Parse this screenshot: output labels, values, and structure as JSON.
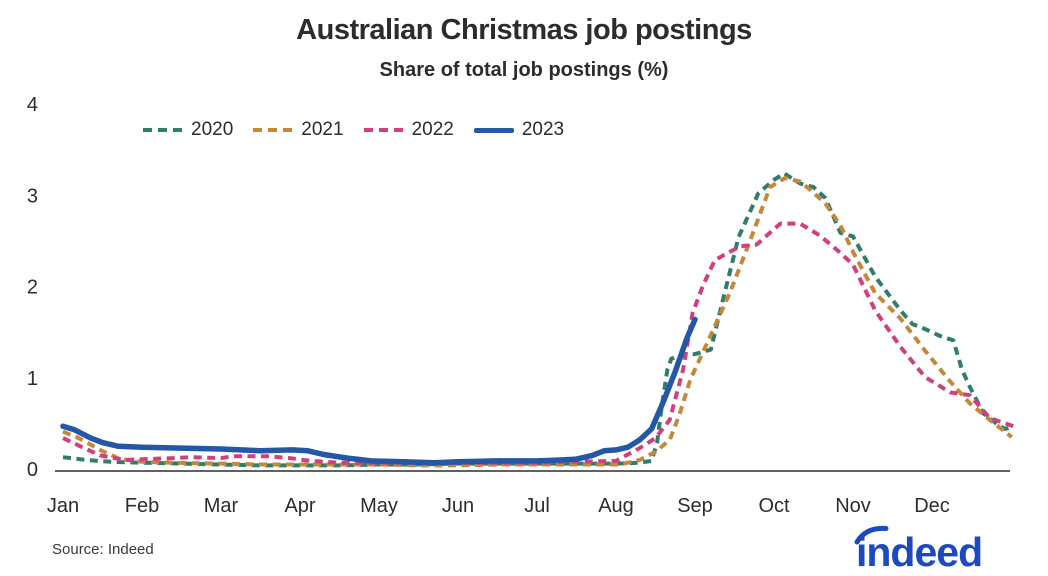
{
  "page": {
    "background": "#FFFFFF",
    "text_color": "#2D2D2D"
  },
  "header": {
    "title": "Australian Christmas job postings",
    "subtitle": "Share of total job postings (%)"
  },
  "footer": {
    "source": "Source: Indeed",
    "logo_text": "indeed",
    "logo_color": "#1B49C0"
  },
  "chart_data": {
    "type": "line",
    "title": "Australian Christmas job postings",
    "subtitle": "Share of total job postings (%)",
    "xlabel": "",
    "ylabel": "Share of total job postings (%)",
    "ylim": [
      0,
      4
    ],
    "yticks": [
      0,
      1,
      2,
      3,
      4
    ],
    "grid": false,
    "legend_position": "top-left",
    "x_unit": "months since Jan 1 (fractional = position within month)",
    "categories": [
      "Jan",
      "Feb",
      "Mar",
      "Apr",
      "May",
      "Jun",
      "Jul",
      "Aug",
      "Sep",
      "Oct",
      "Nov",
      "Dec"
    ],
    "axis_color": "#2D2D2D",
    "series": [
      {
        "name": "2020",
        "color": "#2F7D6D",
        "style": "dashed",
        "points": [
          [
            0,
            0.14
          ],
          [
            0.3,
            0.11
          ],
          [
            0.6,
            0.09
          ],
          [
            1,
            0.08
          ],
          [
            1.5,
            0.07
          ],
          [
            2,
            0.06
          ],
          [
            2.5,
            0.05
          ],
          [
            3,
            0.05
          ],
          [
            3.5,
            0.05
          ],
          [
            4,
            0.06
          ],
          [
            4.5,
            0.06
          ],
          [
            5,
            0.07
          ],
          [
            5.5,
            0.07
          ],
          [
            6,
            0.07
          ],
          [
            6.5,
            0.07
          ],
          [
            7,
            0.07
          ],
          [
            7.3,
            0.08
          ],
          [
            7.45,
            0.1
          ],
          [
            7.52,
            0.3
          ],
          [
            7.58,
            0.7
          ],
          [
            7.65,
            1.1
          ],
          [
            7.7,
            1.22
          ],
          [
            7.85,
            1.26
          ],
          [
            8,
            1.27
          ],
          [
            8.2,
            1.32
          ],
          [
            8.35,
            1.85
          ],
          [
            8.55,
            2.55
          ],
          [
            8.8,
            3.03
          ],
          [
            9,
            3.18
          ],
          [
            9.13,
            3.25
          ],
          [
            9.33,
            3.14
          ],
          [
            9.5,
            3.1
          ],
          [
            9.65,
            2.98
          ],
          [
            9.84,
            2.6
          ],
          [
            10,
            2.56
          ],
          [
            10.28,
            2.12
          ],
          [
            10.6,
            1.75
          ],
          [
            10.75,
            1.6
          ],
          [
            10.9,
            1.55
          ],
          [
            11.1,
            1.47
          ],
          [
            11.27,
            1.42
          ],
          [
            11.38,
            1.1
          ],
          [
            11.48,
            0.91
          ],
          [
            11.65,
            0.62
          ],
          [
            11.8,
            0.52
          ],
          [
            11.92,
            0.45
          ],
          [
            12.02,
            0.47
          ]
        ]
      },
      {
        "name": "2021",
        "color": "#C4883B",
        "style": "dashed",
        "points": [
          [
            0,
            0.42
          ],
          [
            0.2,
            0.35
          ],
          [
            0.47,
            0.22
          ],
          [
            0.72,
            0.12
          ],
          [
            1,
            0.09
          ],
          [
            1.35,
            0.08
          ],
          [
            2,
            0.07
          ],
          [
            2.5,
            0.06
          ],
          [
            3,
            0.06
          ],
          [
            3.5,
            0.06
          ],
          [
            4,
            0.06
          ],
          [
            4.5,
            0.05
          ],
          [
            5,
            0.05
          ],
          [
            5.5,
            0.06
          ],
          [
            6,
            0.06
          ],
          [
            6.7,
            0.06
          ],
          [
            7.05,
            0.06
          ],
          [
            7.3,
            0.11
          ],
          [
            7.5,
            0.2
          ],
          [
            7.68,
            0.33
          ],
          [
            7.8,
            0.6
          ],
          [
            7.94,
            0.99
          ],
          [
            8.19,
            1.46
          ],
          [
            8.44,
            1.94
          ],
          [
            8.7,
            2.52
          ],
          [
            8.95,
            3.1
          ],
          [
            9.14,
            3.2
          ],
          [
            9.33,
            3.16
          ],
          [
            9.46,
            3.07
          ],
          [
            9.65,
            2.92
          ],
          [
            9.84,
            2.68
          ],
          [
            10,
            2.39
          ],
          [
            10.28,
            1.94
          ],
          [
            10.6,
            1.66
          ],
          [
            10.91,
            1.31
          ],
          [
            11.23,
            0.97
          ],
          [
            11.48,
            0.73
          ],
          [
            11.73,
            0.55
          ],
          [
            12.01,
            0.36
          ]
        ]
      },
      {
        "name": "2022",
        "color": "#D23F7F",
        "style": "dashed",
        "points": [
          [
            0,
            0.35
          ],
          [
            0.22,
            0.26
          ],
          [
            0.47,
            0.16
          ],
          [
            0.78,
            0.11
          ],
          [
            1.04,
            0.12
          ],
          [
            1.4,
            0.13
          ],
          [
            1.61,
            0.14
          ],
          [
            2,
            0.13
          ],
          [
            2.15,
            0.15
          ],
          [
            2.6,
            0.15
          ],
          [
            2.87,
            0.13
          ],
          [
            3.13,
            0.1
          ],
          [
            3.5,
            0.08
          ],
          [
            4,
            0.08
          ],
          [
            4.5,
            0.08
          ],
          [
            5,
            0.08
          ],
          [
            5.5,
            0.08
          ],
          [
            6,
            0.08
          ],
          [
            6.4,
            0.09
          ],
          [
            7,
            0.1
          ],
          [
            7.3,
            0.24
          ],
          [
            7.5,
            0.35
          ],
          [
            7.68,
            0.55
          ],
          [
            7.85,
            1.1
          ],
          [
            7.97,
            1.72
          ],
          [
            8.1,
            2.02
          ],
          [
            8.25,
            2.3
          ],
          [
            8.57,
            2.45
          ],
          [
            8.78,
            2.47
          ],
          [
            9.08,
            2.7
          ],
          [
            9.33,
            2.7
          ],
          [
            9.58,
            2.57
          ],
          [
            9.84,
            2.38
          ],
          [
            10,
            2.25
          ],
          [
            10.28,
            1.75
          ],
          [
            10.6,
            1.35
          ],
          [
            10.91,
            1.02
          ],
          [
            11.23,
            0.85
          ],
          [
            11.48,
            0.82
          ],
          [
            11.73,
            0.57
          ],
          [
            12.03,
            0.48
          ]
        ]
      },
      {
        "name": "2023",
        "color": "#2557A7",
        "style": "solid",
        "points": [
          [
            0,
            0.48
          ],
          [
            0.15,
            0.44
          ],
          [
            0.35,
            0.35
          ],
          [
            0.5,
            0.3
          ],
          [
            0.7,
            0.26
          ],
          [
            1,
            0.25
          ],
          [
            1.5,
            0.24
          ],
          [
            2,
            0.23
          ],
          [
            2.5,
            0.21
          ],
          [
            2.9,
            0.22
          ],
          [
            3.1,
            0.21
          ],
          [
            3.3,
            0.17
          ],
          [
            3.6,
            0.13
          ],
          [
            3.9,
            0.1
          ],
          [
            4.3,
            0.09
          ],
          [
            4.7,
            0.08
          ],
          [
            5,
            0.09
          ],
          [
            5.5,
            0.1
          ],
          [
            6,
            0.1
          ],
          [
            6.3,
            0.11
          ],
          [
            6.5,
            0.12
          ],
          [
            6.7,
            0.16
          ],
          [
            6.85,
            0.21
          ],
          [
            7,
            0.22
          ],
          [
            7.15,
            0.25
          ],
          [
            7.3,
            0.33
          ],
          [
            7.45,
            0.45
          ],
          [
            7.6,
            0.75
          ],
          [
            7.75,
            1.08
          ],
          [
            7.9,
            1.45
          ],
          [
            8,
            1.65
          ]
        ]
      }
    ],
    "source": "Source: Indeed"
  }
}
